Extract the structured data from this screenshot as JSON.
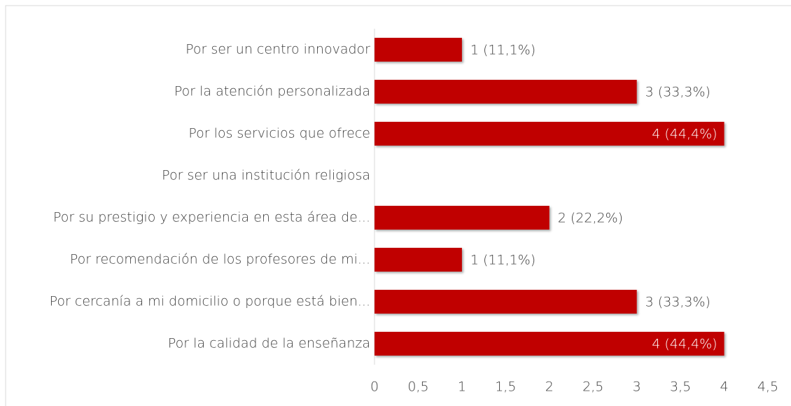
{
  "chart_data": {
    "type": "bar",
    "orientation": "horizontal",
    "categories": [
      "Por ser un centro innovador",
      "Por la atención personalizada",
      "Por los servicios que ofrece",
      "Por ser una institución religiosa",
      "Por su prestigio y experiencia en esta área de...",
      "Por recomendación de los profesores de mi...",
      "Por cercanía a mi domicilio o porque está bien...",
      "Por la calidad de la enseñanza"
    ],
    "values": [
      1,
      3,
      4,
      null,
      2,
      1,
      3,
      4
    ],
    "value_labels": [
      "1 (11,1%)",
      "3 (33,3%)",
      "4 (44,4%)",
      null,
      "2 (22,2%)",
      "1 (11,1%)",
      "3 (33,3%)",
      "4 (44,4%)"
    ],
    "color": "#c00000",
    "xlim": [
      0,
      4.5
    ],
    "xticks": [
      0,
      {
        "value": 0.5,
        "label": "0,5"
      },
      1,
      {
        "value": 1.5,
        "label": "1,5"
      },
      2,
      {
        "value": 2.5,
        "label": "2,5"
      },
      3,
      {
        "value": 3.5,
        "label": "3,5"
      },
      4,
      {
        "value": 4.5,
        "label": "4,5"
      }
    ],
    "grid": false
  }
}
